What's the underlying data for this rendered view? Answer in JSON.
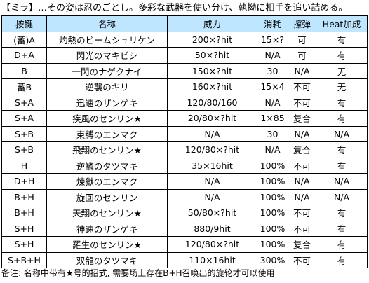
{
  "header": {
    "text": "【ミラ】…その姿は忍のごとし。多彩な武器を使い分け、執拗に相手を追い詰める。"
  },
  "table": {
    "columns": [
      "按键",
      "名称",
      "威力",
      "消耗",
      "擦弹",
      "Heat加成"
    ],
    "rows": [
      [
        "(蓄)A",
        "灼熱のビームシュリケン",
        "200×?hit",
        "15×?",
        "可",
        "有"
      ],
      [
        "D+A",
        "閃光のマキビシ",
        "50×?hit",
        "N/A",
        "可",
        "有"
      ],
      [
        "B",
        "一閃のナゲクナイ",
        "150×?hit",
        "30",
        "N/A",
        "无"
      ],
      [
        "蓄B",
        "逆襲のキリ",
        "160×?hit",
        "15×4",
        "不可",
        "无"
      ],
      [
        "S+A",
        "迅速のザンゲキ",
        "120/80/160",
        "N/A",
        "不可",
        "有"
      ],
      [
        "S+A",
        "疾風のセンリン★",
        "20/80×?hit",
        "1×85",
        "复合",
        "有"
      ],
      [
        "S+B",
        "束縛のエンマク",
        "N/A",
        "30",
        "N/A",
        "N/A"
      ],
      [
        "S+B",
        "飛翔のセンリン★",
        "120/80×?hit",
        "N/A",
        "复合",
        "有"
      ],
      [
        "H",
        "逆鱗のタツマキ",
        "35×16hit",
        "100%",
        "不可",
        "有"
      ],
      [
        "D+H",
        "煉獄のエンマク",
        "N/A",
        "100%",
        "N/A",
        "N/A"
      ],
      [
        "B+H",
        "旋回のセンリン",
        "N/A",
        "100%",
        "N/A",
        "N/A"
      ],
      [
        "B+H",
        "天翔のセンリン★",
        "50/80×?hit",
        "100%",
        "不可",
        "有"
      ],
      [
        "S+H",
        "神速のザンゲキ",
        "880/9hit",
        "100%",
        "不可",
        "有"
      ],
      [
        "S+H",
        "羅生のセンリン★",
        "120/80×?hit",
        "100%",
        "复合",
        "有"
      ],
      [
        "S+B+H",
        "双龍のタツマキ",
        "110×16hit",
        "300%",
        "不可",
        "有"
      ]
    ]
  },
  "footer": {
    "text": "备注: 名称中带有★号的招式, 需要场上存在B+H召唤出的旋轮才可以使用"
  },
  "colors": {
    "header_bg": "#bfe6ff",
    "border": "#000000"
  }
}
